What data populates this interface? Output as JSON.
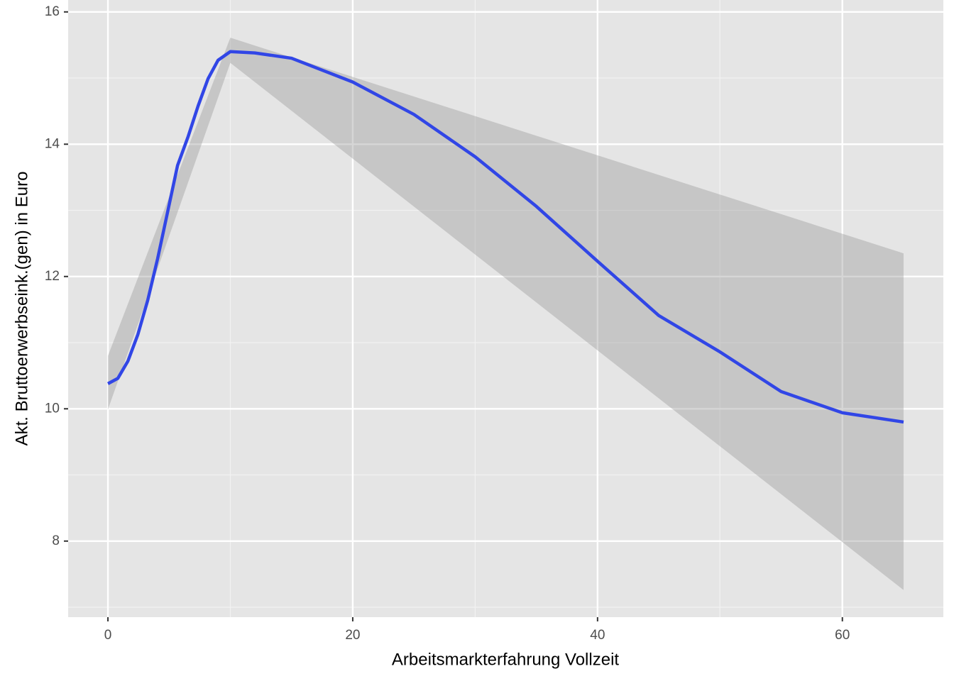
{
  "chart_data": {
    "type": "line",
    "x_label": "Arbeitsmarkterfahrung Vollzeit",
    "y_label": "Akt. Bruttoerwerbseink.(gen) in Euro",
    "x": [
      0,
      0.81,
      1.63,
      2.44,
      3.25,
      4.06,
      4.87,
      5.69,
      6.56,
      7.37,
      8.18,
      9.0,
      10,
      12,
      15,
      20,
      25,
      30,
      35,
      40,
      45,
      50,
      55,
      60,
      65
    ],
    "series": [
      {
        "color": "#3146e6",
        "values": [
          10.38,
          10.46,
          10.72,
          11.12,
          11.64,
          12.27,
          12.97,
          13.68,
          14.12,
          14.58,
          14.99,
          15.27,
          15.4,
          15.38,
          15.3,
          14.94,
          14.45,
          13.81,
          13.06,
          12.23,
          11.41,
          10.86,
          10.26,
          9.94,
          9.8
        ]
      }
    ],
    "band": {
      "color": "#999999",
      "x": [
        0,
        10,
        65
      ],
      "lower": [
        9.99,
        15.23,
        7.26
      ],
      "upper": [
        10.8,
        15.61,
        12.35
      ]
    },
    "xlim": [
      -3.25,
      68.25
    ],
    "xticks": [
      0,
      20,
      40,
      60
    ],
    "xminor": [
      10,
      30,
      50
    ],
    "ylim": [
      6.85,
      16.18
    ],
    "yticks": [
      8,
      10,
      12,
      14,
      16
    ],
    "yminor": [
      7,
      9,
      11,
      13,
      15
    ],
    "grid": true
  }
}
